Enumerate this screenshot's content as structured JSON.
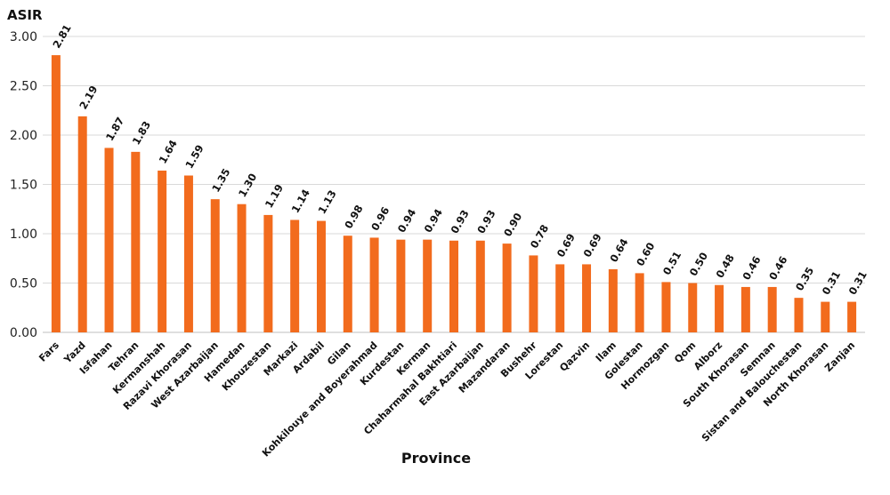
{
  "chart_data": {
    "type": "bar",
    "title": "",
    "xlabel": "Province",
    "ylabel": "ASIR",
    "ylim": [
      0,
      3
    ],
    "yticks": [
      "0.00",
      "0.50",
      "1.00",
      "1.50",
      "2.00",
      "2.50",
      "3.00"
    ],
    "grid": true,
    "legend": "none",
    "bar_color": "#f26b1d",
    "categories": [
      "Fars",
      "Yazd",
      "Isfahan",
      "Tehran",
      "Kermanshah",
      "Razavi Khorasan",
      "West Azarbaijan",
      "Hamedan",
      "Khouzestan",
      "Markazi",
      "Ardabil",
      "Gilan",
      "Kohkilouye and Boyerahmad",
      "Kurdestan",
      "Kerman",
      "Chaharmahal Bakhtiari",
      "East Azarbaijan",
      "Mazandaran",
      "Bushehr",
      "Lorestan",
      "Qazvin",
      "Ilam",
      "Golestan",
      "Hormozgan",
      "Qom",
      "Alborz",
      "South Khorasan",
      "Semnan",
      "Sistan and Balouchestan",
      "North Khorasan",
      "Zanjan"
    ],
    "values": [
      2.81,
      2.19,
      1.87,
      1.83,
      1.64,
      1.59,
      1.35,
      1.3,
      1.19,
      1.14,
      1.13,
      0.98,
      0.96,
      0.94,
      0.94,
      0.93,
      0.93,
      0.9,
      0.78,
      0.69,
      0.69,
      0.64,
      0.6,
      0.51,
      0.5,
      0.48,
      0.46,
      0.46,
      0.35,
      0.31,
      0.31
    ],
    "data_labels": [
      "2.81",
      "2.19",
      "1.87",
      "1.83",
      "1.64",
      "1.59",
      "1.35",
      "1.30",
      "1.19",
      "1.14",
      "1.13",
      "0.98",
      "0.96",
      "0.94",
      "0.94",
      "0.93",
      "0.93",
      "0.90",
      "0.78",
      "0.69",
      "0.69",
      "0.64",
      "0.60",
      "0.51",
      "0.50",
      "0.48",
      "0.46",
      "0.46",
      "0.35",
      "0.31",
      "0.31"
    ]
  }
}
